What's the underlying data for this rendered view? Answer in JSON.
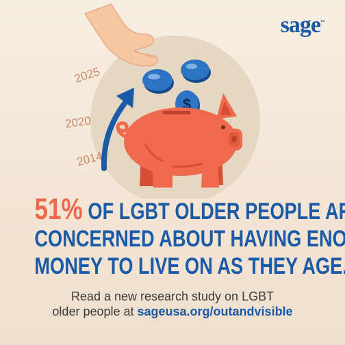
{
  "brand": {
    "logo_text": "sage",
    "logo_mark": "™",
    "color": "#1b5aa6"
  },
  "illustration": {
    "years": [
      "2025",
      "2020",
      "2014"
    ],
    "coin_symbol": "$"
  },
  "headline": {
    "percent": "51%",
    "line1_rest": "OF LGBT OLDER PEOPLE ARE",
    "line2": "CONCERNED ABOUT HAVING ENOUGH",
    "line3": "MONEY TO LIVE ON  AS THEY AGE."
  },
  "cta": {
    "line1": "Read a new research study on LGBT",
    "line2_prefix": "older people at ",
    "link": "sageusa.org/outandvisible"
  },
  "colors": {
    "accent_orange": "#ef6a4c",
    "brand_blue": "#1b5aa6",
    "background": "#f3e6d6"
  }
}
